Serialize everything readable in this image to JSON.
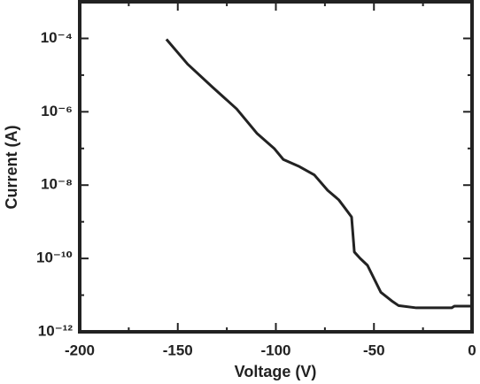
{
  "chart_data": {
    "type": "line",
    "xlabel": "Voltage (V)",
    "ylabel": "Current (A)",
    "log_y": true,
    "color": "#222222",
    "xlim": [
      -200,
      0
    ],
    "xticks": [
      -200,
      -150,
      -100,
      -50,
      0
    ],
    "xminor": [
      -175,
      -125,
      -75,
      -25
    ],
    "ylim": [
      1e-12,
      0.001
    ],
    "yticks": [
      {
        "value": 1e-12,
        "label": "10⁻¹²"
      },
      {
        "value": 1e-10,
        "label": "10⁻¹⁰"
      },
      {
        "value": 1e-08,
        "label": "10⁻⁸"
      },
      {
        "value": 1e-06,
        "label": "10⁻⁶"
      },
      {
        "value": 0.0001,
        "label": "10⁻⁴"
      }
    ],
    "yminor": [
      1e-11,
      1e-09,
      1e-07,
      1e-05,
      0.001
    ],
    "x": [
      -155.8,
      -145,
      -132.3,
      -120,
      -109.7,
      -100.7,
      -96.2,
      -88,
      -80.4,
      -73.6,
      -68,
      -64.6,
      -61.4,
      -60.0,
      -57,
      -53.3,
      -46.5,
      -41,
      -37.5,
      -28.4,
      -10.4,
      -9,
      0
    ],
    "values": [
      9.5e-05,
      2e-05,
      4.7e-06,
      1.2e-06,
      2.6e-07,
      9.8e-08,
      5e-08,
      3.2e-08,
      1.9e-08,
      7.2e-09,
      4e-09,
      2.3e-09,
      1.35e-09,
      1.5e-10,
      1e-10,
      6.5e-11,
      1.2e-11,
      7e-12,
      5.2e-12,
      4.5e-12,
      4.5e-12,
      5e-12,
      5e-12
    ]
  }
}
